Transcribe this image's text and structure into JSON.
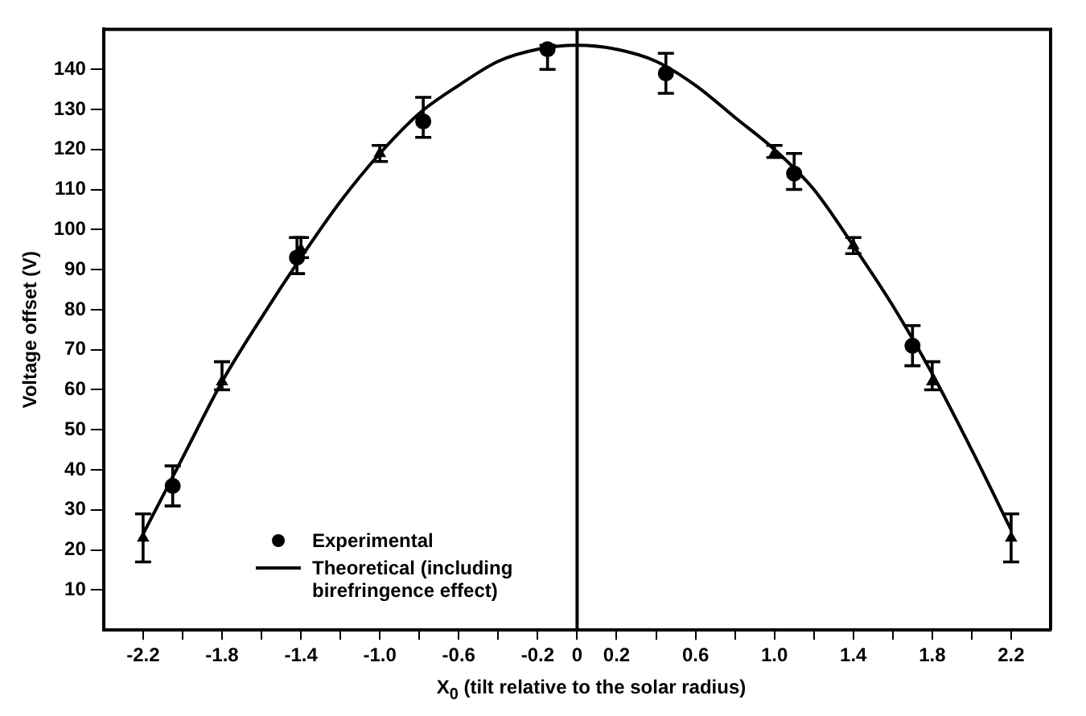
{
  "chart_data": {
    "type": "scatter",
    "xlabel": "X$_{0}$ (tilt relative to the solar radius)",
    "ylabel": "Voltage offset (V)",
    "xlim": [
      -2.4,
      2.4
    ],
    "ylim": [
      0,
      150
    ],
    "xticks": [
      -2.2,
      {
        "value": -2.0,
        "label": null
      },
      -1.8,
      {
        "value": -1.6,
        "label": null
      },
      -1.4,
      {
        "value": -1.2,
        "label": null
      },
      {
        "value": -1.0,
        "label": "-1.0"
      },
      {
        "value": -0.8,
        "label": null
      },
      -0.6,
      {
        "value": -0.4,
        "label": null
      },
      -0.2,
      0,
      0.2,
      {
        "value": 0.4,
        "label": null
      },
      0.6,
      {
        "value": 0.8,
        "label": null
      },
      {
        "value": 1.0,
        "label": "1.0"
      },
      {
        "value": 1.2,
        "label": null
      },
      1.4,
      {
        "value": 1.6,
        "label": null
      },
      1.8,
      {
        "value": 2.0,
        "label": null
      },
      2.2
    ],
    "yticks": [
      10,
      20,
      30,
      40,
      50,
      60,
      70,
      80,
      90,
      100,
      110,
      120,
      130,
      140
    ],
    "grid": false,
    "legend": "bottom left",
    "ref_lines": [
      {
        "axis": "x",
        "value": 0,
        "color": "#000000"
      }
    ],
    "series": [
      {
        "name": "Experimental",
        "type": "scatter",
        "color": "#000000",
        "marker": "circle",
        "x": [
          -2.05,
          -1.42,
          -0.78,
          -0.15,
          0.45,
          1.1,
          1.7
        ],
        "values": [
          36,
          93,
          127,
          145,
          139,
          114,
          71
        ],
        "errors": [
          [
            31,
            41
          ],
          [
            89,
            98
          ],
          [
            123,
            133
          ],
          [
            140,
            146
          ],
          [
            134,
            144
          ],
          [
            110,
            119
          ],
          [
            66,
            76
          ]
        ]
      },
      {
        "type": "scatter",
        "color": "#000000",
        "marker": "triangle",
        "x": [
          -2.2,
          -1.8,
          -1.4,
          -1.0,
          1.0,
          1.4,
          1.8,
          2.2
        ],
        "values": [
          23,
          62,
          95,
          119,
          119,
          96,
          62,
          23
        ],
        "errors": [
          [
            17,
            29
          ],
          [
            60,
            67
          ],
          [
            93,
            98
          ],
          [
            117,
            121
          ],
          [
            118,
            121
          ],
          [
            94,
            98
          ],
          [
            60,
            67
          ],
          [
            17,
            29
          ]
        ]
      },
      {
        "name": "Theoretical (including birefringence effect)",
        "type": "line",
        "color": "#000000",
        "marker": "none",
        "x": [
          -2.2,
          -2.0,
          -1.8,
          -1.6,
          -1.4,
          -1.2,
          -1.0,
          -0.8,
          -0.6,
          -0.4,
          -0.2,
          0,
          0.2,
          0.4,
          0.6,
          0.8,
          1.0,
          1.2,
          1.4,
          1.6,
          1.8,
          2.0,
          2.2
        ],
        "values": [
          24,
          43,
          62,
          78,
          93,
          107,
          119,
          129,
          136,
          142,
          145,
          146,
          145,
          142,
          136,
          128,
          120,
          110,
          96,
          81,
          64,
          45,
          25
        ]
      }
    ]
  }
}
